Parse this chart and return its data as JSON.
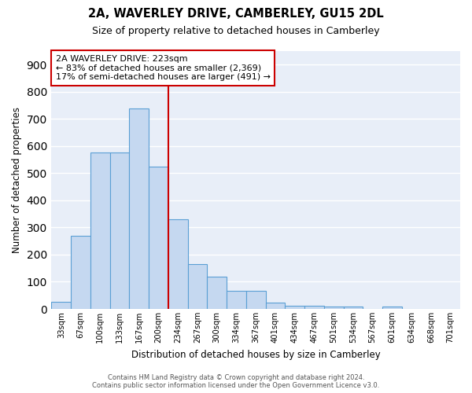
{
  "title": "2A, WAVERLEY DRIVE, CAMBERLEY, GU15 2DL",
  "subtitle": "Size of property relative to detached houses in Camberley",
  "xlabel": "Distribution of detached houses by size in Camberley",
  "ylabel": "Number of detached properties",
  "bar_color": "#c5d8f0",
  "bar_edge_color": "#5a9fd4",
  "bg_color": "#e8eef8",
  "grid_color": "white",
  "vline_color": "#cc0000",
  "annotation_text": "2A WAVERLEY DRIVE: 223sqm\n← 83% of detached houses are smaller (2,369)\n17% of semi-detached houses are larger (491) →",
  "annotation_box_color": "white",
  "annotation_box_edge": "#cc0000",
  "footer_line1": "Contains HM Land Registry data © Crown copyright and database right 2024.",
  "footer_line2": "Contains public sector information licensed under the Open Government Licence v3.0.",
  "categories": [
    "33sqm",
    "67sqm",
    "100sqm",
    "133sqm",
    "167sqm",
    "200sqm",
    "234sqm",
    "267sqm",
    "300sqm",
    "334sqm",
    "367sqm",
    "401sqm",
    "434sqm",
    "467sqm",
    "501sqm",
    "534sqm",
    "567sqm",
    "601sqm",
    "634sqm",
    "668sqm",
    "701sqm"
  ],
  "values": [
    27,
    270,
    575,
    575,
    740,
    525,
    330,
    165,
    118,
    68,
    68,
    22,
    12,
    12,
    10,
    10,
    0,
    10,
    0,
    0,
    0
  ],
  "vline_idx": 6,
  "ylim": [
    0,
    950
  ],
  "yticks": [
    0,
    100,
    200,
    300,
    400,
    500,
    600,
    700,
    800,
    900
  ]
}
